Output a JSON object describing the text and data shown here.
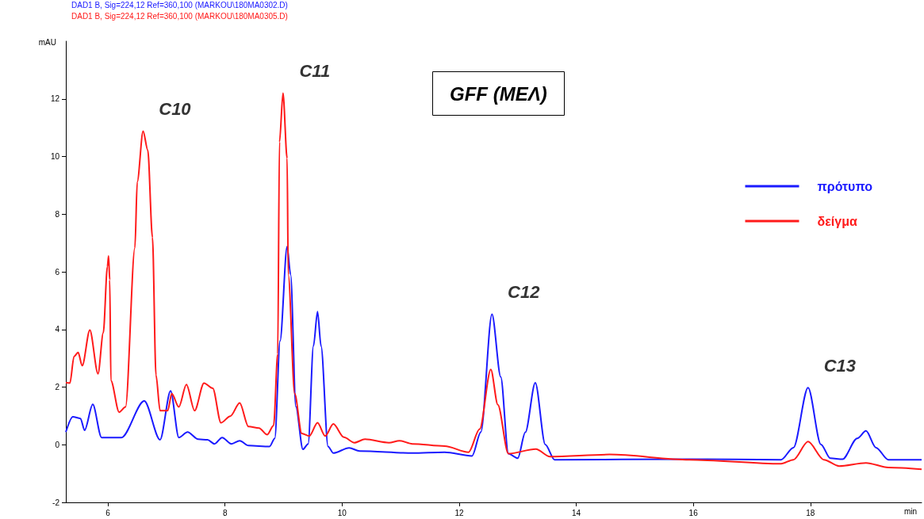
{
  "chart_data": {
    "type": "line",
    "title": "GFF (ΜΕΛ)",
    "xlabel": "min",
    "ylabel": "mAU",
    "annotations": [
      "DAD1 B, Sig=224,12 Ref=360,100 (MARKOU\\180MA0302.D)",
      "DAD1 B, Sig=224,12 Ref=360,100 (MARKOU\\180MA0305.D)",
      {
        "text": "C10",
        "x": 6.6,
        "y": 10.88
      },
      {
        "text": "C11",
        "x": 8.99,
        "y": 12.2
      },
      {
        "text": "C12",
        "x": 12.56,
        "y": 4.53
      },
      {
        "text": "C13",
        "x": 17.96,
        "y": 1.98
      }
    ],
    "xlim": [
      5.28,
      19.9
    ],
    "xticks": [
      6,
      8,
      10,
      12,
      14,
      16,
      18
    ],
    "ylim": [
      -2,
      14
    ],
    "yticks": [
      -2,
      0,
      2,
      4,
      6,
      8,
      10,
      12
    ],
    "grid": false,
    "legend": "right",
    "marker": "none",
    "line_style": "solid",
    "series": [
      {
        "name": "πρότυπο",
        "color": "#1a1aff",
        "x": [
          5.28,
          5.4,
          5.53,
          5.6,
          5.74,
          5.89,
          6.23,
          6.62,
          6.89,
          7.07,
          7.21,
          7.36,
          7.54,
          7.7,
          7.82,
          7.95,
          8.11,
          8.25,
          8.4,
          8.76,
          8.85,
          8.94,
          9.06,
          9.12,
          9.21,
          9.33,
          9.42,
          9.51,
          9.58,
          9.64,
          9.76,
          9.85,
          10.12,
          10.3,
          11.2,
          11.75,
          12.22,
          12.37,
          12.56,
          12.71,
          12.84,
          13.0,
          13.13,
          13.3,
          13.47,
          13.63,
          15.93,
          17.5,
          17.71,
          17.96,
          18.18,
          18.34,
          18.55,
          18.8,
          18.95,
          19.12,
          19.33,
          19.9
        ],
        "values": [
          0.44,
          0.97,
          0.91,
          0.5,
          1.4,
          0.25,
          0.25,
          1.52,
          0.17,
          1.87,
          0.25,
          0.44,
          0.19,
          0.17,
          0.03,
          0.25,
          0.03,
          0.14,
          -0.03,
          -0.06,
          0.22,
          3.6,
          6.87,
          5.9,
          1.32,
          -0.16,
          0.03,
          3.42,
          4.62,
          3.42,
          -0.06,
          -0.29,
          -0.11,
          -0.22,
          -0.29,
          -0.26,
          -0.39,
          0.44,
          4.53,
          2.35,
          -0.31,
          -0.47,
          0.43,
          2.15,
          0.01,
          -0.52,
          -0.5,
          -0.52,
          -0.1,
          1.98,
          0.01,
          -0.47,
          -0.5,
          0.22,
          0.48,
          -0.1,
          -0.52,
          -0.52
        ]
      },
      {
        "name": "δείγμα",
        "color": "#ff1a1a",
        "x": [
          5.28,
          5.35,
          5.42,
          5.49,
          5.56,
          5.69,
          5.83,
          5.92,
          5.99,
          6.01,
          6.03,
          6.05,
          6.19,
          6.3,
          6.46,
          6.5,
          6.6,
          6.68,
          6.76,
          6.82,
          6.89,
          7.02,
          7.09,
          7.21,
          7.34,
          7.48,
          7.64,
          7.79,
          7.93,
          8.09,
          8.25,
          8.4,
          8.58,
          8.72,
          8.83,
          8.9,
          8.93,
          8.99,
          9.06,
          9.08,
          9.19,
          9.31,
          9.44,
          9.58,
          9.71,
          9.85,
          10.03,
          10.21,
          10.39,
          10.8,
          10.98,
          11.2,
          11.75,
          12.16,
          12.35,
          12.54,
          12.66,
          12.84,
          13.31,
          13.55,
          14.57,
          15.93,
          17.5,
          17.71,
          17.96,
          18.23,
          18.49,
          18.95,
          19.33,
          19.9
        ],
        "values": [
          2.15,
          2.14,
          3.06,
          3.2,
          2.74,
          3.98,
          2.46,
          3.88,
          6.18,
          6.55,
          5.72,
          2.23,
          1.13,
          1.31,
          6.83,
          9.12,
          10.88,
          10.22,
          7.19,
          2.42,
          1.18,
          1.18,
          1.77,
          1.31,
          2.09,
          1.18,
          2.14,
          1.96,
          0.76,
          0.99,
          1.45,
          0.63,
          0.58,
          0.35,
          0.67,
          3.15,
          10.5,
          12.2,
          9.94,
          5.9,
          1.77,
          0.39,
          0.3,
          0.76,
          0.3,
          0.72,
          0.26,
          0.07,
          0.19,
          0.07,
          0.14,
          0.03,
          -0.05,
          -0.26,
          0.54,
          2.61,
          1.39,
          -0.31,
          -0.15,
          -0.41,
          -0.34,
          -0.52,
          -0.66,
          -0.52,
          0.11,
          -0.52,
          -0.74,
          -0.63,
          -0.79,
          -0.85
        ]
      }
    ]
  }
}
